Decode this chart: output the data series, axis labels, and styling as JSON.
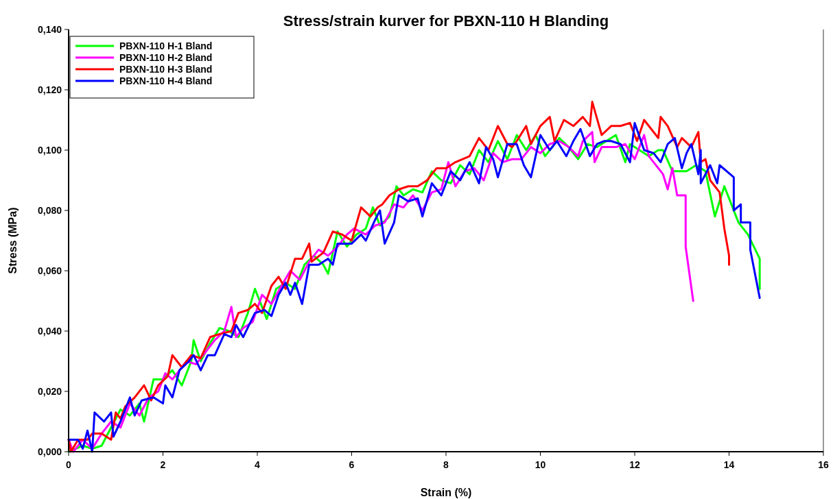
{
  "chart_data": {
    "type": "line",
    "title": "Stress/strain kurver for PBXN-110 H Blanding",
    "xlabel": "Strain (%)",
    "ylabel": "Stress (MPa)",
    "xlim": [
      0,
      16
    ],
    "xticks": [
      0,
      2,
      4,
      6,
      8,
      10,
      12,
      14,
      16
    ],
    "ylim": [
      0,
      0.14
    ],
    "yticks": [
      {
        "value": 0,
        "label": "0,000"
      },
      {
        "value": 0.02,
        "label": "0,020"
      },
      {
        "value": 0.04,
        "label": "0,040"
      },
      {
        "value": 0.06,
        "label": "0,060"
      },
      {
        "value": 0.08,
        "label": "0,080"
      },
      {
        "value": 0.1,
        "label": "0,100"
      },
      {
        "value": 0.12,
        "label": "0,120"
      },
      {
        "value": 0.14,
        "label": "0,140"
      }
    ],
    "grid": false,
    "legend": "top left",
    "marker": "none",
    "line_style": "solid",
    "series": [
      {
        "name": "PBXN-110 H-1 Bland",
        "color": "#00ff00",
        "x": [
          0,
          0.3,
          0.5,
          0.7,
          0.9,
          1.1,
          1.3,
          1.5,
          1.6,
          1.8,
          2.0,
          2.2,
          2.4,
          2.6,
          2.65,
          2.8,
          3.0,
          3.2,
          3.4,
          3.6,
          3.8,
          3.95,
          4.1,
          4.2,
          4.4,
          4.6,
          4.8,
          5.0,
          5.2,
          5.4,
          5.5,
          5.7,
          5.9,
          6.1,
          6.3,
          6.45,
          6.6,
          6.8,
          6.95,
          7.1,
          7.3,
          7.5,
          7.7,
          7.9,
          8.1,
          8.3,
          8.5,
          8.7,
          8.9,
          9.1,
          9.3,
          9.5,
          9.7,
          9.9,
          10.1,
          10.4,
          10.6,
          10.8,
          11.0,
          11.2,
          11.4,
          11.6,
          11.8,
          11.9,
          12.1,
          12.3,
          12.5,
          12.6,
          12.8,
          13.1,
          13.3,
          13.5,
          13.7,
          13.9,
          14.2,
          14.4,
          14.65,
          14.65
        ],
        "values": [
          0,
          0.002,
          0.001,
          0.002,
          0.008,
          0.014,
          0.012,
          0.016,
          0.01,
          0.024,
          0.024,
          0.027,
          0.022,
          0.03,
          0.037,
          0.03,
          0.036,
          0.041,
          0.04,
          0.038,
          0.046,
          0.054,
          0.048,
          0.044,
          0.054,
          0.056,
          0.054,
          0.062,
          0.065,
          0.062,
          0.059,
          0.073,
          0.068,
          0.072,
          0.074,
          0.081,
          0.075,
          0.078,
          0.088,
          0.085,
          0.087,
          0.086,
          0.093,
          0.09,
          0.089,
          0.095,
          0.092,
          0.1,
          0.096,
          0.103,
          0.097,
          0.105,
          0.1,
          0.105,
          0.098,
          0.104,
          0.101,
          0.097,
          0.102,
          0.101,
          0.103,
          0.105,
          0.096,
          0.102,
          0.1,
          0.098,
          0.1,
          0.1,
          0.093,
          0.093,
          0.095,
          0.093,
          0.078,
          0.088,
          0.076,
          0.072,
          0.064,
          0.054
        ]
      },
      {
        "name": "PBXN-110 H-2 Bland",
        "color": "#ff00ff",
        "x": [
          0,
          0.1,
          0.3,
          0.5,
          0.7,
          0.9,
          1.1,
          1.3,
          1.5,
          1.7,
          1.9,
          2.05,
          2.2,
          2.4,
          2.5,
          2.7,
          2.9,
          3.1,
          3.3,
          3.45,
          3.55,
          3.7,
          3.9,
          4.1,
          4.3,
          4.55,
          4.7,
          4.9,
          5.1,
          5.3,
          5.5,
          5.7,
          5.9,
          6.05,
          6.3,
          6.5,
          6.7,
          6.9,
          7.1,
          7.3,
          7.5,
          7.7,
          7.9,
          8.05,
          8.2,
          8.4,
          8.6,
          8.8,
          9.0,
          9.2,
          9.4,
          9.6,
          9.8,
          10.0,
          10.2,
          10.4,
          10.6,
          10.8,
          10.9,
          11.1,
          11.15,
          11.3,
          11.6,
          11.8,
          12.0,
          12.2,
          12.3,
          12.5,
          12.6,
          12.7,
          12.8,
          12.9,
          13.08,
          13.08,
          13.24
        ],
        "values": [
          0.004,
          0,
          0.004,
          0.001,
          0.006,
          0.01,
          0.008,
          0.016,
          0.012,
          0.018,
          0.02,
          0.026,
          0.024,
          0.028,
          0.03,
          0.029,
          0.033,
          0.037,
          0.04,
          0.048,
          0.038,
          0.041,
          0.043,
          0.052,
          0.049,
          0.056,
          0.06,
          0.057,
          0.063,
          0.067,
          0.065,
          0.068,
          0.072,
          0.074,
          0.072,
          0.075,
          0.076,
          0.082,
          0.081,
          0.085,
          0.08,
          0.086,
          0.087,
          0.096,
          0.088,
          0.093,
          0.094,
          0.09,
          0.099,
          0.096,
          0.097,
          0.097,
          0.101,
          0.099,
          0.102,
          0.103,
          0.101,
          0.098,
          0.103,
          0.106,
          0.096,
          0.101,
          0.101,
          0.102,
          0.097,
          0.105,
          0.098,
          0.094,
          0.092,
          0.087,
          0.094,
          0.085,
          0.085,
          0.068,
          0.05
        ]
      },
      {
        "name": "PBXN-110 H-3 Bland",
        "color": "#ff0000",
        "x": [
          0,
          0.05,
          0.2,
          0.4,
          0.5,
          0.7,
          0.9,
          1.0,
          1.1,
          1.2,
          1.4,
          1.6,
          1.75,
          1.9,
          2.1,
          2.2,
          2.4,
          2.6,
          2.8,
          3.0,
          3.2,
          3.45,
          3.6,
          3.8,
          3.95,
          4.1,
          4.3,
          4.45,
          4.6,
          4.8,
          4.95,
          5.1,
          5.15,
          5.4,
          5.6,
          5.8,
          6.0,
          6.2,
          6.4,
          6.55,
          6.65,
          6.8,
          7.0,
          7.2,
          7.4,
          7.6,
          7.7,
          7.8,
          8.0,
          8.2,
          8.5,
          8.7,
          8.9,
          9.1,
          9.3,
          9.4,
          9.5,
          9.7,
          9.8,
          10.0,
          10.2,
          10.3,
          10.5,
          10.7,
          10.9,
          11.05,
          11.1,
          11.3,
          11.5,
          11.7,
          11.9,
          12.05,
          12.2,
          12.5,
          12.55,
          12.7,
          12.9,
          13.0,
          13.2,
          13.35,
          13.4,
          13.5,
          13.6,
          13.8,
          13.9,
          14.0,
          14.0
        ],
        "values": [
          0.004,
          0,
          0.004,
          0.004,
          0.006,
          0.006,
          0.004,
          0.013,
          0.011,
          0.015,
          0.018,
          0.022,
          0.017,
          0.022,
          0.025,
          0.032,
          0.028,
          0.032,
          0.031,
          0.038,
          0.039,
          0.04,
          0.046,
          0.047,
          0.049,
          0.046,
          0.055,
          0.058,
          0.054,
          0.064,
          0.064,
          0.069,
          0.063,
          0.066,
          0.073,
          0.072,
          0.07,
          0.081,
          0.078,
          0.081,
          0.082,
          0.085,
          0.087,
          0.088,
          0.088,
          0.09,
          0.092,
          0.094,
          0.094,
          0.096,
          0.098,
          0.104,
          0.1,
          0.108,
          0.102,
          0.101,
          0.103,
          0.108,
          0.102,
          0.108,
          0.111,
          0.103,
          0.11,
          0.108,
          0.111,
          0.108,
          0.116,
          0.105,
          0.108,
          0.108,
          0.109,
          0.103,
          0.11,
          0.104,
          0.111,
          0.108,
          0.101,
          0.104,
          0.101,
          0.106,
          0.096,
          0.097,
          0.09,
          0.086,
          0.074,
          0.065,
          0.062
        ]
      },
      {
        "name": "PBXN-110 H-4 Bland",
        "color": "#0000ff",
        "x": [
          0,
          0.2,
          0.3,
          0.4,
          0.5,
          0.55,
          0.75,
          0.9,
          0.95,
          1.1,
          1.3,
          1.4,
          1.55,
          1.8,
          2.0,
          2.05,
          2.2,
          2.35,
          2.55,
          2.65,
          2.8,
          2.95,
          3.1,
          3.3,
          3.45,
          3.55,
          3.7,
          3.95,
          4.15,
          4.3,
          4.45,
          4.6,
          4.7,
          4.8,
          4.95,
          5.1,
          5.3,
          5.5,
          5.6,
          5.7,
          5.9,
          6.0,
          6.2,
          6.3,
          6.5,
          6.6,
          6.7,
          6.9,
          7.0,
          7.2,
          7.4,
          7.5,
          7.7,
          7.9,
          8.1,
          8.3,
          8.5,
          8.7,
          8.85,
          9.0,
          9.1,
          9.3,
          9.5,
          9.65,
          9.8,
          10.0,
          10.2,
          10.35,
          10.55,
          10.7,
          10.85,
          11.05,
          11.2,
          11.35,
          11.5,
          11.7,
          11.9,
          12.0,
          12.2,
          12.4,
          12.55,
          12.7,
          12.85,
          13.0,
          13.1,
          13.2,
          13.35,
          13.4,
          13.4,
          13.6,
          13.75,
          13.8,
          14.1,
          14.1,
          14.25,
          14.25,
          14.45,
          14.45,
          14.65
        ],
        "values": [
          0.004,
          0.004,
          0.001,
          0.007,
          0,
          0.013,
          0.01,
          0.013,
          0.005,
          0.01,
          0.018,
          0.012,
          0.017,
          0.018,
          0.016,
          0.022,
          0.018,
          0.027,
          0.03,
          0.032,
          0.027,
          0.032,
          0.032,
          0.039,
          0.038,
          0.042,
          0.038,
          0.046,
          0.047,
          0.045,
          0.052,
          0.056,
          0.052,
          0.056,
          0.049,
          0.062,
          0.062,
          0.064,
          0.062,
          0.069,
          0.069,
          0.069,
          0.072,
          0.07,
          0.077,
          0.08,
          0.069,
          0.076,
          0.085,
          0.083,
          0.084,
          0.078,
          0.089,
          0.085,
          0.093,
          0.09,
          0.096,
          0.089,
          0.101,
          0.097,
          0.091,
          0.102,
          0.102,
          0.095,
          0.091,
          0.105,
          0.1,
          0.103,
          0.098,
          0.103,
          0.107,
          0.098,
          0.102,
          0.103,
          0.103,
          0.102,
          0.096,
          0.109,
          0.1,
          0.099,
          0.096,
          0.102,
          0.104,
          0.094,
          0.099,
          0.102,
          0.092,
          0.1,
          0.089,
          0.095,
          0.089,
          0.095,
          0.091,
          0.08,
          0.082,
          0.076,
          0.076,
          0.067,
          0.051
        ]
      }
    ]
  }
}
